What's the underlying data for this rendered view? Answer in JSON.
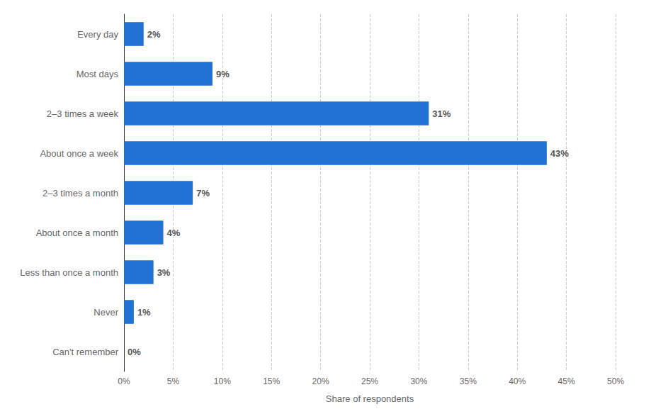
{
  "chart_data": {
    "type": "bar",
    "orientation": "horizontal",
    "categories": [
      "Every day",
      "Most days",
      "2–3 times a week",
      "About once a week",
      "2–3 times a month",
      "About once a month",
      "Less than once a month",
      "Never",
      "Can't remember"
    ],
    "values": [
      2,
      9,
      31,
      43,
      7,
      4,
      3,
      1,
      0
    ],
    "value_labels": [
      "2%",
      "9%",
      "31%",
      "43%",
      "7%",
      "4%",
      "3%",
      "1%",
      "0%"
    ],
    "data_labels": true,
    "color": "#2171d4",
    "xlabel": "Share of respondents",
    "xlim": [
      0,
      50
    ],
    "xticks": [
      {
        "value": 0,
        "label": "0%"
      },
      {
        "value": 5,
        "label": "5%"
      },
      {
        "value": 10,
        "label": "10%"
      },
      {
        "value": 15,
        "label": "15%"
      },
      {
        "value": 20,
        "label": "20%"
      },
      {
        "value": 25,
        "label": "25%"
      },
      {
        "value": 30,
        "label": "30%"
      },
      {
        "value": 35,
        "label": "35%"
      },
      {
        "value": 40,
        "label": "40%"
      },
      {
        "value": 45,
        "label": "45%"
      },
      {
        "value": 50,
        "label": "50%"
      }
    ],
    "grid": true
  }
}
